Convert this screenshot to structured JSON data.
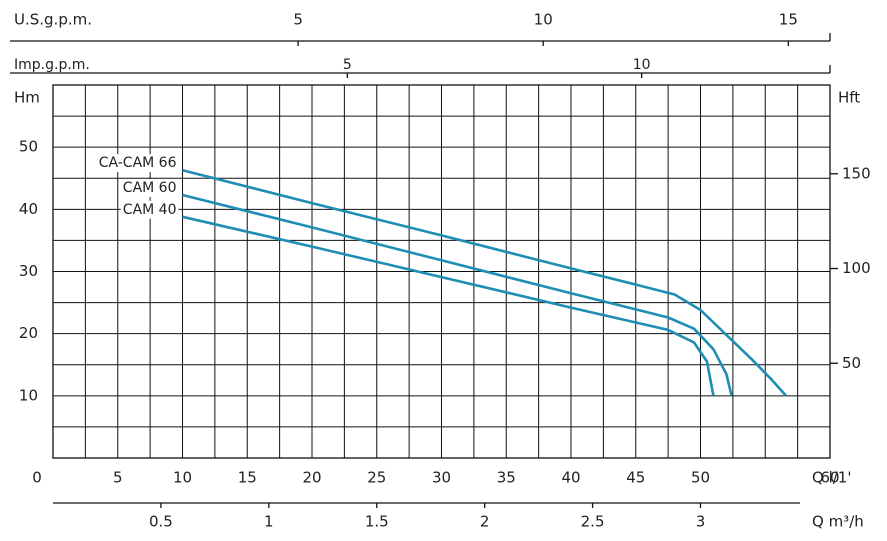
{
  "chart_data": {
    "type": "line",
    "x_label": "Q l/1'",
    "y_label": "Hm",
    "y2_label": "Hft",
    "xlim": [
      0,
      60
    ],
    "xticks": [
      0,
      5,
      10,
      15,
      20,
      25,
      30,
      35,
      40,
      45,
      50,
      60
    ],
    "xgrid": [
      0,
      2.5,
      5,
      7.5,
      10,
      12.5,
      15,
      17.5,
      20,
      22.5,
      25,
      27.5,
      30,
      32.5,
      35,
      37.5,
      40,
      42.5,
      45,
      47.5,
      50,
      52.5,
      55,
      57.5,
      60
    ],
    "ylim": [
      0,
      60
    ],
    "yticks": [
      10,
      20,
      30,
      40,
      50
    ],
    "ygrid": [
      0,
      5,
      10,
      15,
      20,
      25,
      30,
      35,
      40,
      45,
      50,
      55,
      60
    ],
    "y2lim": [
      0,
      196.85
    ],
    "y2ticks": [
      50,
      100,
      150
    ],
    "top_axes": [
      {
        "label": "U.S.g.p.m.",
        "lim": [
          0,
          15.85
        ],
        "ticks": [
          5,
          10,
          15
        ]
      },
      {
        "label": "Imp.g.p.m.",
        "lim": [
          0,
          13.2
        ],
        "ticks": [
          5,
          10
        ]
      }
    ],
    "bottom_axis": {
      "label": "Q m³/h",
      "lim": [
        0,
        3.6
      ],
      "ticks": [
        0.5,
        1,
        1.5,
        2,
        2.5,
        3
      ]
    },
    "series": [
      {
        "name": "CA-CAM 66",
        "color": "#1f8db4",
        "x": [
          10,
          20,
          30,
          40,
          45,
          48,
          50,
          52,
          54,
          55.5,
          56.6
        ],
        "values": [
          46.3,
          41.0,
          35.8,
          30.5,
          27.9,
          26.3,
          23.8,
          19.8,
          15.8,
          12.6,
          10
        ]
      },
      {
        "name": "CAM 60",
        "color": "#1f8db4",
        "x": [
          10,
          20,
          30,
          40,
          45,
          47.5,
          49.5,
          51,
          52,
          52.4
        ],
        "values": [
          42.3,
          37.1,
          31.8,
          26.5,
          23.9,
          22.6,
          20.8,
          17.5,
          13.5,
          10
        ]
      },
      {
        "name": "CAM 40",
        "color": "#1f8db4",
        "x": [
          10,
          20,
          30,
          40,
          45,
          47.5,
          49.5,
          50.5,
          51
        ],
        "values": [
          38.8,
          34.0,
          29.1,
          24.2,
          21.8,
          20.6,
          18.6,
          15.5,
          10
        ]
      }
    ]
  }
}
